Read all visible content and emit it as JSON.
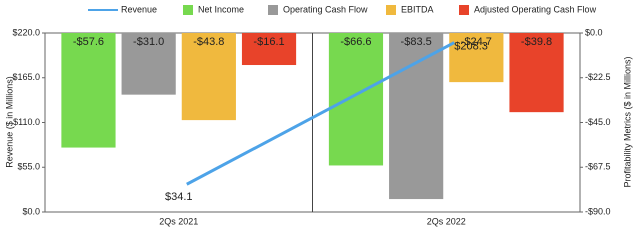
{
  "chart_data": {
    "type": "bar",
    "categories": [
      "2Qs 2021",
      "2Qs 2022"
    ],
    "y_label": "Revenue ($ in Millions)",
    "y2_label": "Profitability Metrics ($ in Millions)",
    "ylim": [
      0,
      220
    ],
    "yticks": [
      {
        "value": 0,
        "label": "$0.0"
      },
      {
        "value": 55,
        "label": "$55.0"
      },
      {
        "value": 110,
        "label": "$110.0"
      },
      {
        "value": 165,
        "label": "$165.0"
      },
      {
        "value": 220,
        "label": "$220.0"
      }
    ],
    "y2lim": [
      -90,
      0
    ],
    "y2ticks": [
      {
        "value": 0,
        "label": "$0.0"
      },
      {
        "value": -22.5,
        "label": "-$22.5"
      },
      {
        "value": -45,
        "label": "-$45.0"
      },
      {
        "value": -67.5,
        "label": "-$67.5"
      },
      {
        "value": -90,
        "label": "-$90.0"
      }
    ],
    "series": [
      {
        "name": "Revenue",
        "type": "line",
        "color": "#4da3e8",
        "values": [
          34.1,
          208.3
        ],
        "value_labels": [
          "$34.1",
          "$208.3"
        ]
      },
      {
        "name": "Net Income",
        "color": "#77d94f",
        "axis": "y2",
        "values": [
          -57.6,
          -66.6
        ],
        "value_labels": [
          "-$57.6",
          "-$66.6"
        ]
      },
      {
        "name": "Operating Cash Flow",
        "color": "#999999",
        "axis": "y2",
        "values": [
          -31.0,
          -83.5
        ],
        "value_labels": [
          "-$31.0",
          "-$83.5"
        ]
      },
      {
        "name": "EBITDA",
        "color": "#f0b93e",
        "axis": "y2",
        "values": [
          -43.8,
          -24.7
        ],
        "value_labels": [
          "-$43.8",
          "-$24.7"
        ]
      },
      {
        "name": "Adjusted Operating Cash Flow",
        "color": "#e8432a",
        "axis": "y2",
        "values": [
          -16.1,
          -39.8
        ],
        "value_labels": [
          "-$16.1",
          "-$39.8"
        ]
      }
    ]
  }
}
